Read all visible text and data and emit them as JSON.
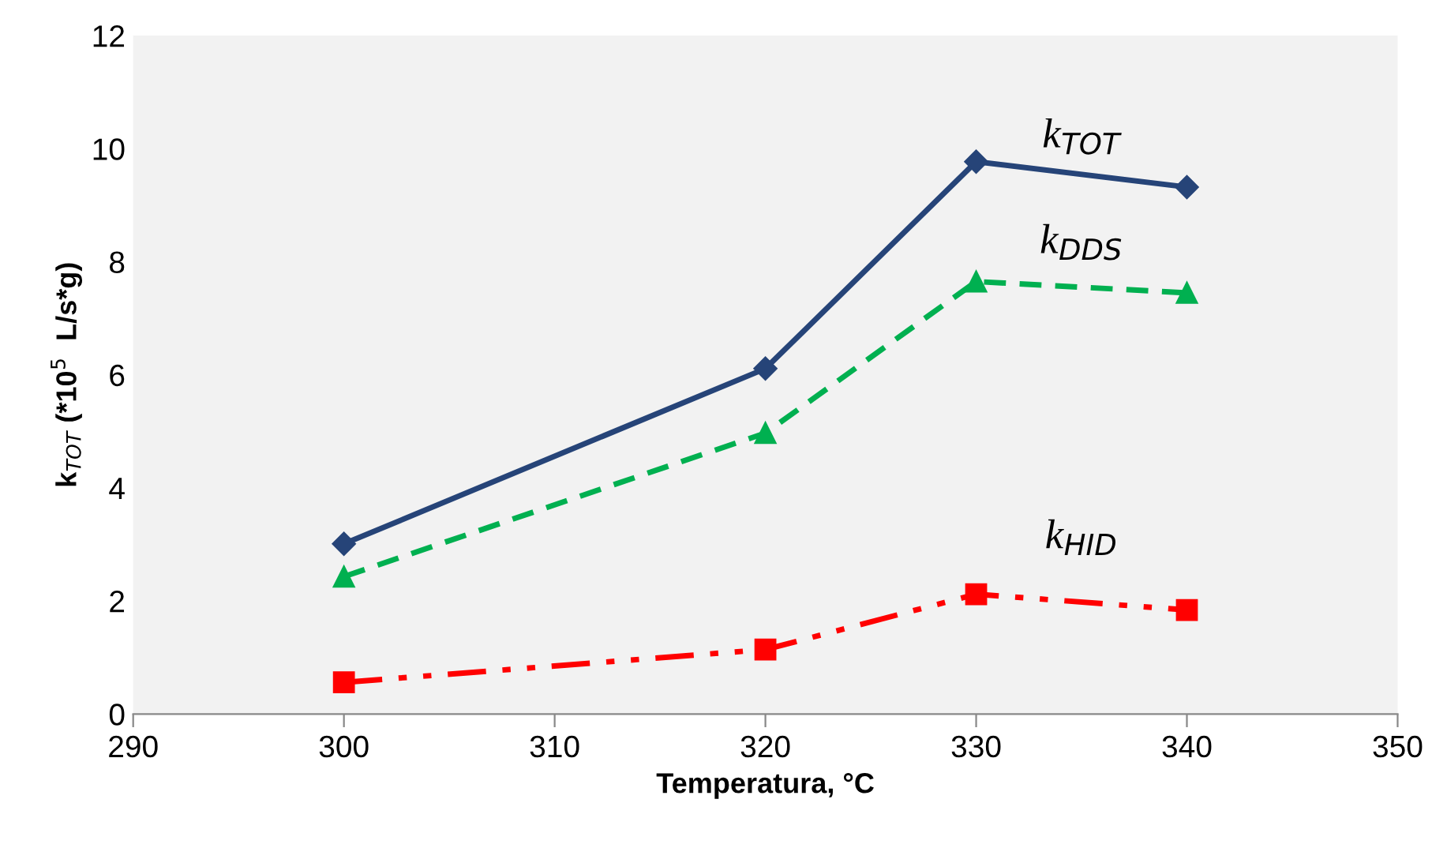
{
  "chart_data": {
    "type": "line",
    "xlabel": "Temperatura, °C",
    "ylabel": "k$_{TOT}$ (*10$^{5}$  L/s*g)",
    "x": [
      300,
      320,
      330,
      340
    ],
    "series": [
      {
        "name": "k$_{TOT}$",
        "color": "#264478",
        "values": [
          3.01,
          6.11,
          9.77,
          9.32
        ],
        "marker": "diamond",
        "line_style": "solid"
      },
      {
        "name": "k$_{DDS}$",
        "color": "#00b050",
        "values": [
          2.43,
          4.97,
          7.65,
          7.45
        ],
        "marker": "triangle",
        "line_style": "dashed"
      },
      {
        "name": "k$_{HID}$",
        "color": "#ff0000",
        "values": [
          0.56,
          1.14,
          2.12,
          1.84
        ],
        "marker": "square",
        "line_style": "dashdotdot"
      }
    ],
    "xlim": [
      290,
      350
    ],
    "xticks": [
      290,
      300,
      310,
      320,
      330,
      340,
      350
    ],
    "ylim": [
      0,
      12
    ],
    "yticks": [
      0,
      2,
      4,
      6,
      8,
      10,
      12
    ],
    "grid": false,
    "legend": false
  }
}
